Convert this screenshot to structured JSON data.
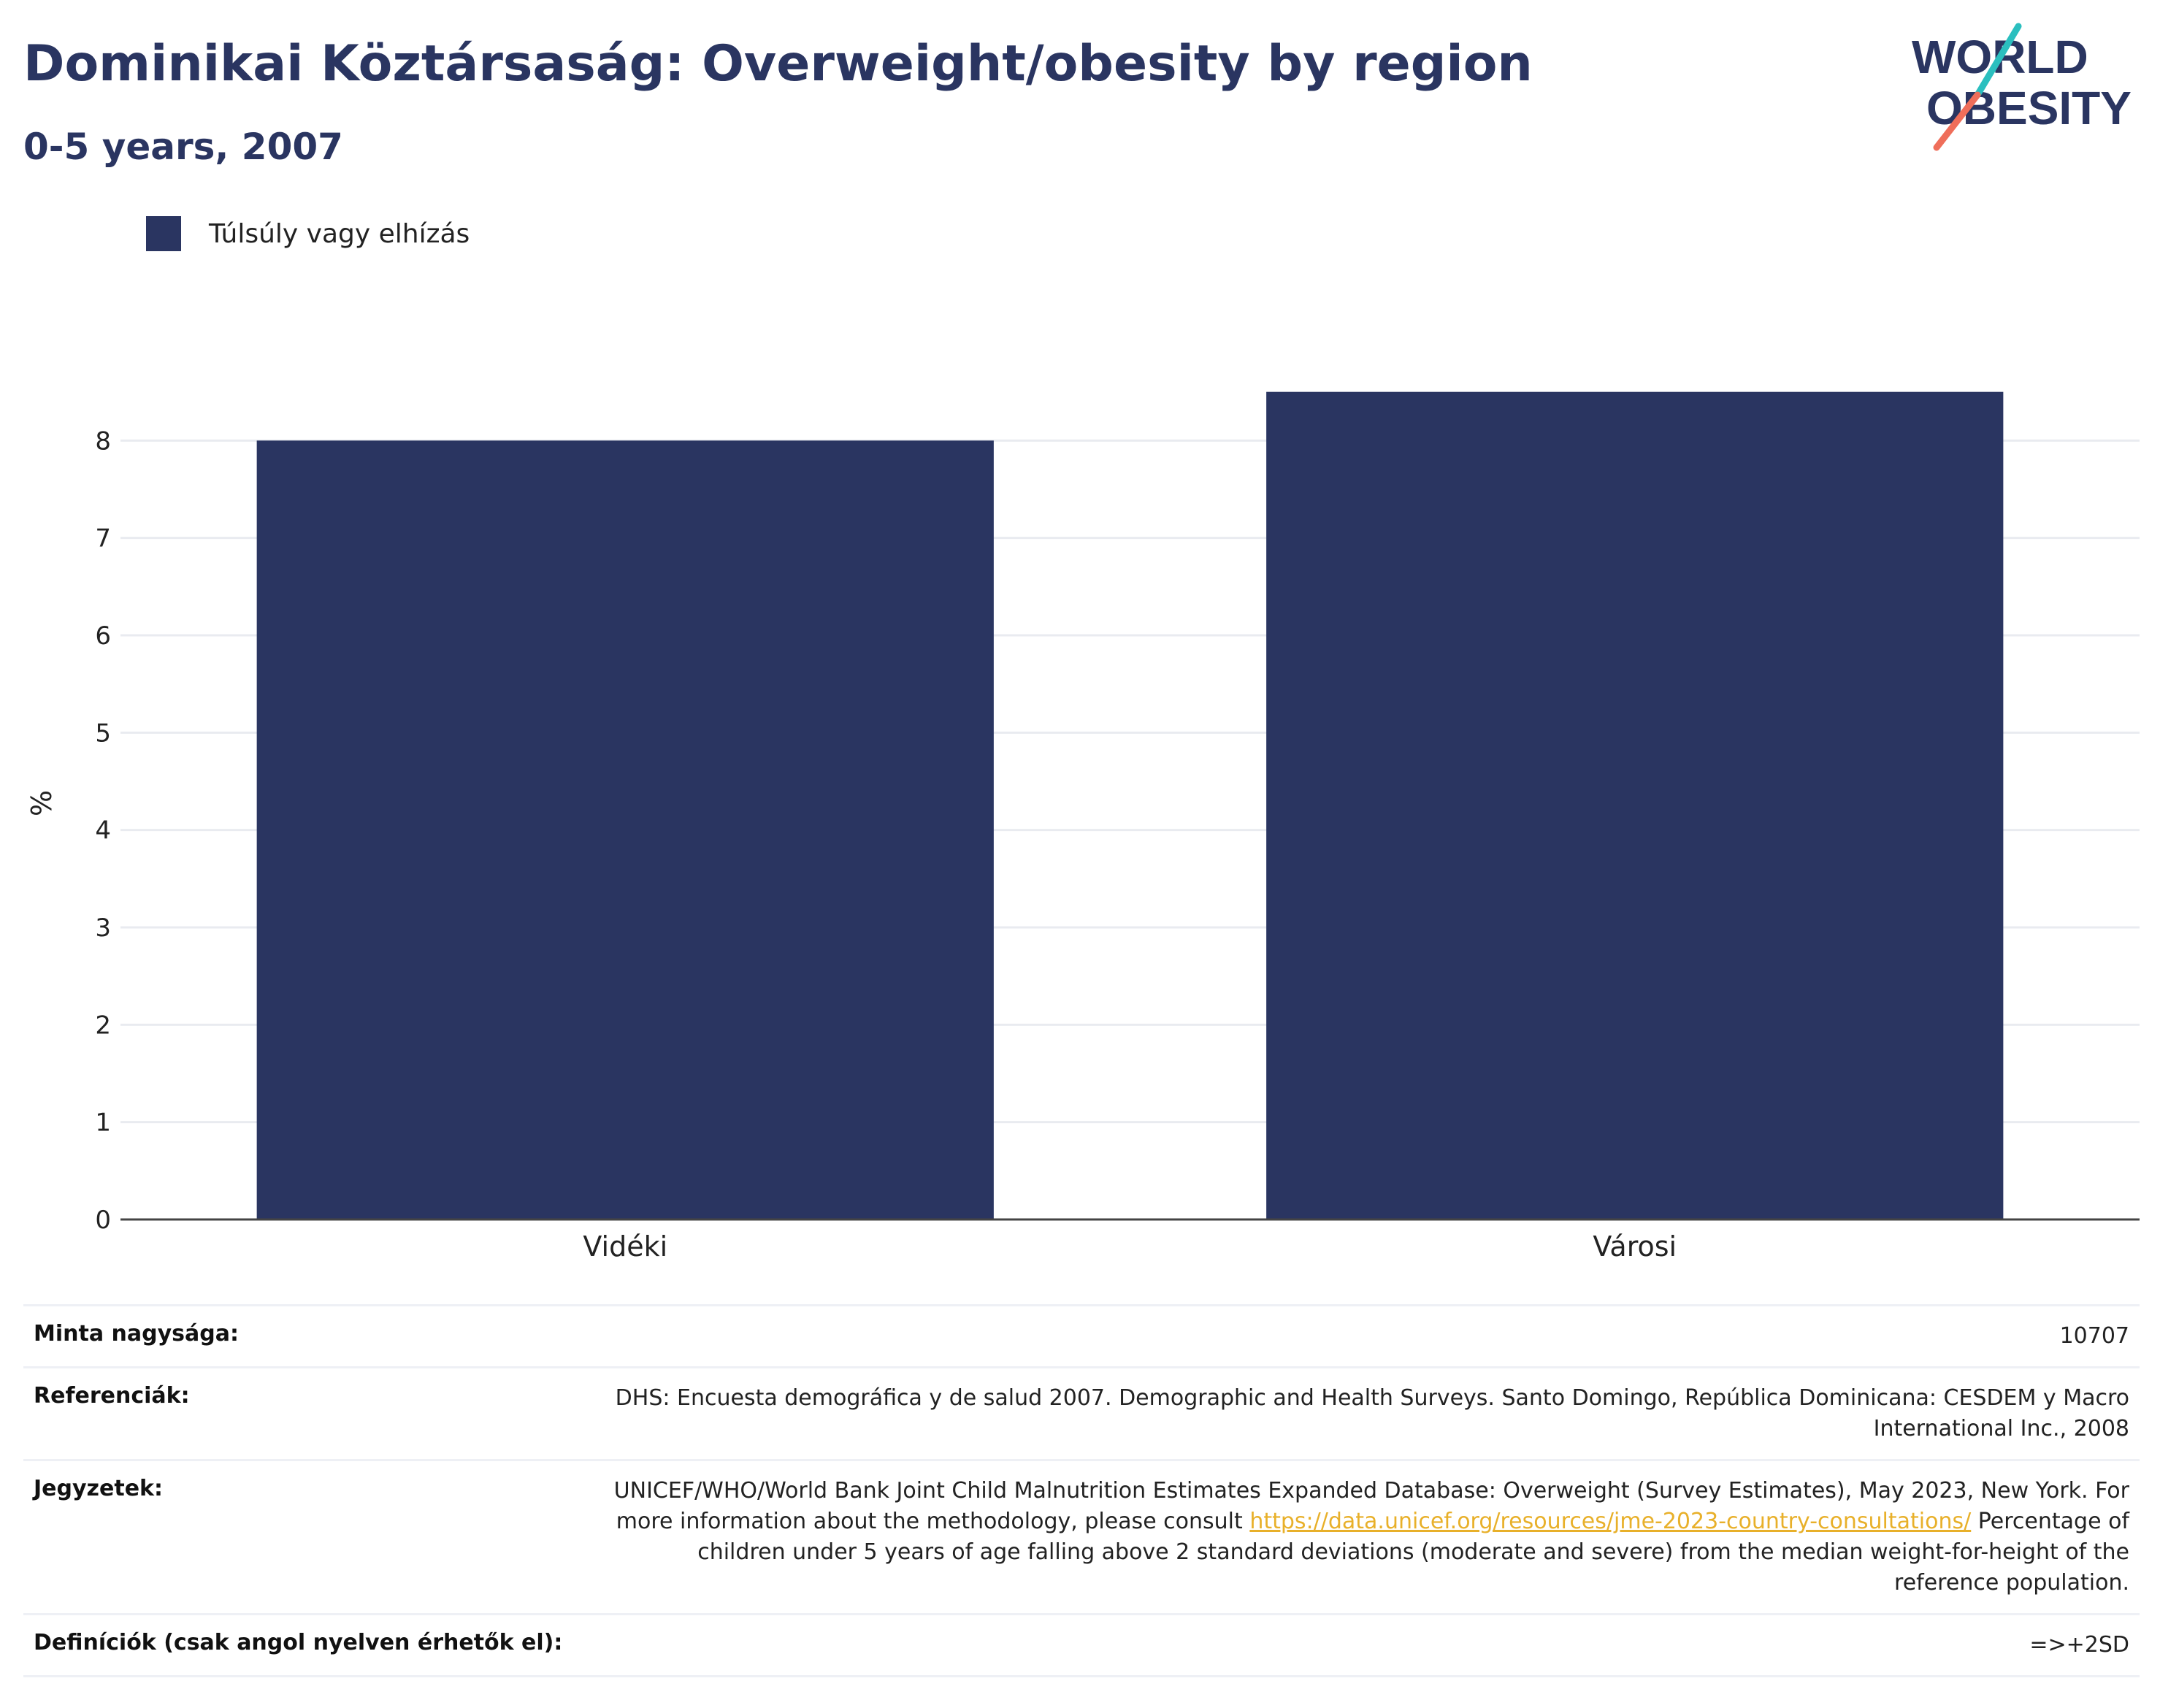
{
  "header": {
    "title": "Dominikai Köztársaság: Overweight/obesity by region",
    "subtitle": "0-5 years, 2007"
  },
  "logo": {
    "line1": "WORLD",
    "line2": "OBESITY"
  },
  "colors": {
    "bar": "#2a3561",
    "grid": "#e9ebf0",
    "axis": "#444444",
    "link": "#e8b02a",
    "logo_teal": "#2bbfbf",
    "logo_coral": "#ef6e5a"
  },
  "chart_data": {
    "type": "bar",
    "categories": [
      "Vidéki",
      "Városi"
    ],
    "series": [
      {
        "name": "Túlsúly vagy elhízás",
        "values": [
          8.0,
          8.5
        ]
      }
    ],
    "ylabel": "%",
    "ylim": [
      0,
      9
    ],
    "yticks": [
      0,
      1,
      2,
      3,
      4,
      5,
      6,
      7,
      8
    ],
    "grid": true,
    "legend": "top-left"
  },
  "footer": {
    "sample_label": "Minta nagysága:",
    "sample_value": "10707",
    "references_label": "Referenciák:",
    "references_value": "DHS: Encuesta demográfica y de salud 2007. Demographic and Health Surveys. Santo Domingo, República Dominicana: CESDEM y Macro International Inc., 2008",
    "notes_label": "Jegyzetek:",
    "notes_text_before": "UNICEF/WHO/World Bank Joint Child Malnutrition Estimates Expanded Database: Overweight (Survey Estimates), May 2023, New York. For more information about the methodology, please consult ",
    "notes_link": "https://data.unicef.org/resources/jme-2023-country-consultations/",
    "notes_text_after": " Percentage of children under 5 years of age falling above 2 standard deviations (moderate and severe) from the median weight-for-height of the reference population.",
    "definitions_label": "Definíciók (csak angol nyelven érhetők el):",
    "definitions_value": "=>+2SD"
  }
}
